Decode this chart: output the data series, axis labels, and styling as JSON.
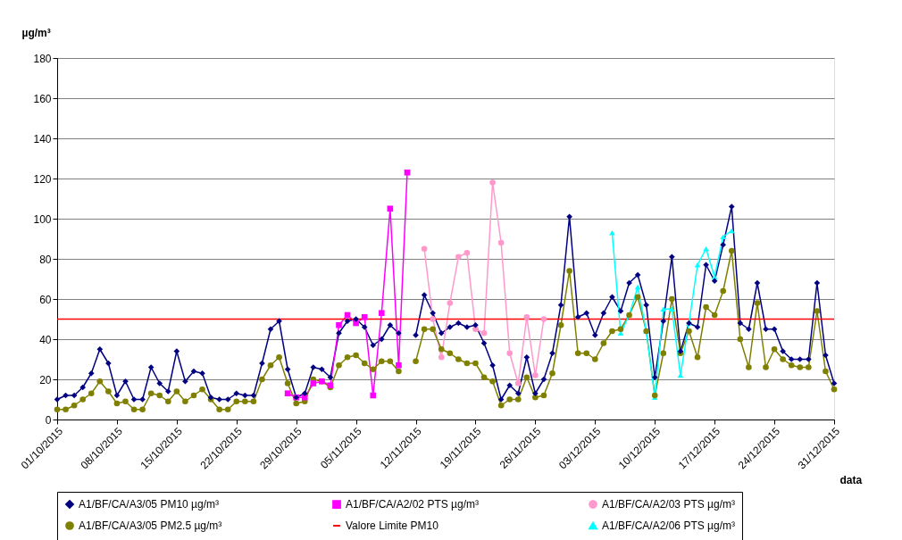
{
  "chart_data": {
    "type": "line",
    "xlabel": "data",
    "ylabel": "µg/m³",
    "x": [
      "2015-10-01",
      "2015-10-02",
      "2015-10-03",
      "2015-10-04",
      "2015-10-05",
      "2015-10-06",
      "2015-10-07",
      "2015-10-08",
      "2015-10-09",
      "2015-10-10",
      "2015-10-11",
      "2015-10-12",
      "2015-10-13",
      "2015-10-14",
      "2015-10-15",
      "2015-10-16",
      "2015-10-17",
      "2015-10-18",
      "2015-10-19",
      "2015-10-20",
      "2015-10-21",
      "2015-10-22",
      "2015-10-23",
      "2015-10-24",
      "2015-10-25",
      "2015-10-26",
      "2015-10-27",
      "2015-10-28",
      "2015-10-29",
      "2015-10-30",
      "2015-10-31",
      "2015-11-01",
      "2015-11-02",
      "2015-11-03",
      "2015-11-04",
      "2015-11-05",
      "2015-11-06",
      "2015-11-07",
      "2015-11-08",
      "2015-11-09",
      "2015-11-10",
      "2015-11-11",
      "2015-11-12",
      "2015-11-13",
      "2015-11-14",
      "2015-11-15",
      "2015-11-16",
      "2015-11-17",
      "2015-11-18",
      "2015-11-19",
      "2015-11-20",
      "2015-11-21",
      "2015-11-22",
      "2015-11-23",
      "2015-11-24",
      "2015-11-25",
      "2015-11-26",
      "2015-11-27",
      "2015-11-28",
      "2015-11-29",
      "2015-11-30",
      "2015-12-01",
      "2015-12-02",
      "2015-12-03",
      "2015-12-04",
      "2015-12-05",
      "2015-12-06",
      "2015-12-07",
      "2015-12-08",
      "2015-12-09",
      "2015-12-10",
      "2015-12-11",
      "2015-12-12",
      "2015-12-13",
      "2015-12-14",
      "2015-12-15",
      "2015-12-16",
      "2015-12-17",
      "2015-12-18",
      "2015-12-19",
      "2015-12-20",
      "2015-12-21",
      "2015-12-22",
      "2015-12-23",
      "2015-12-24",
      "2015-12-25",
      "2015-12-26",
      "2015-12-27",
      "2015-12-28",
      "2015-12-29",
      "2015-12-30",
      "2015-12-31"
    ],
    "series": [
      {
        "name": "A1/BF/CA/A3/05 PM10 µg/m³",
        "color": "#000080",
        "marker": "diamond",
        "values": [
          10,
          12,
          12,
          16,
          23,
          35,
          28,
          12,
          19,
          10,
          10,
          26,
          18,
          14,
          34,
          19,
          24,
          23,
          11,
          10,
          10,
          13,
          12,
          12,
          28,
          45,
          49,
          25,
          11,
          13,
          26,
          25,
          21,
          43,
          49,
          50,
          46,
          37,
          40,
          47,
          43,
          null,
          42,
          62,
          53,
          43,
          46,
          48,
          46,
          47,
          38,
          27,
          10,
          17,
          13,
          31,
          13,
          20,
          33,
          57,
          101,
          51,
          53,
          42,
          53,
          61,
          54,
          68,
          72,
          57,
          21,
          49,
          81,
          34,
          48,
          46,
          77,
          69,
          87,
          106,
          48,
          45,
          68,
          45,
          45,
          34,
          30,
          30,
          30,
          68,
          32,
          18
        ]
      },
      {
        "name": "A1/BF/CA/A2/02 PTS µg/m³",
        "color": "#ff00ff",
        "marker": "square",
        "values": [
          null,
          null,
          null,
          null,
          null,
          null,
          null,
          null,
          null,
          null,
          null,
          null,
          null,
          null,
          null,
          null,
          null,
          null,
          null,
          null,
          null,
          null,
          null,
          null,
          null,
          null,
          null,
          13,
          11,
          11,
          18,
          19,
          17,
          47,
          52,
          48,
          51,
          12,
          53,
          105,
          27,
          123,
          null,
          null,
          null,
          null,
          null,
          null,
          null,
          null,
          null,
          null,
          null,
          null,
          null,
          null,
          null,
          null,
          null,
          null,
          null,
          null,
          null,
          null,
          null,
          null,
          null,
          null,
          null,
          null,
          null,
          null,
          null,
          null,
          null,
          null,
          null,
          null,
          null,
          null,
          null,
          null,
          null,
          null,
          null,
          null,
          null,
          null,
          null,
          null,
          null,
          null
        ]
      },
      {
        "name": "A1/BF/CA/A2/03 PTS µg/m³",
        "color": "#ff99cc",
        "marker": "circle",
        "values": [
          null,
          null,
          null,
          null,
          null,
          null,
          null,
          null,
          null,
          null,
          null,
          null,
          null,
          null,
          null,
          null,
          null,
          null,
          null,
          null,
          null,
          null,
          null,
          null,
          null,
          null,
          null,
          null,
          null,
          null,
          null,
          null,
          null,
          null,
          null,
          null,
          null,
          null,
          null,
          null,
          null,
          null,
          null,
          85,
          50,
          31,
          58,
          81,
          83,
          45,
          43,
          118,
          88,
          33,
          18,
          51,
          22,
          50,
          null,
          null,
          null,
          null,
          null,
          null,
          null,
          null,
          null,
          null,
          null,
          null,
          null,
          null,
          null,
          null,
          null,
          null,
          null,
          null,
          null,
          null,
          null,
          null,
          null,
          null,
          null,
          null,
          null,
          null,
          null,
          null,
          null,
          null
        ]
      },
      {
        "name": "A1/BF/CA/A3/05 PM2.5 µg/m³",
        "color": "#808000",
        "marker": "circle",
        "values": [
          5,
          5,
          7,
          10,
          13,
          19,
          14,
          8,
          9,
          5,
          5,
          13,
          12,
          9,
          14,
          9,
          12,
          15,
          10,
          5,
          5,
          9,
          9,
          9,
          20,
          27,
          31,
          18,
          8,
          9,
          20,
          19,
          16,
          27,
          31,
          32,
          28,
          25,
          29,
          29,
          24,
          null,
          29,
          45,
          45,
          35,
          33,
          30,
          28,
          28,
          21,
          19,
          7,
          10,
          10,
          21,
          11,
          12,
          23,
          47,
          74,
          33,
          33,
          30,
          38,
          44,
          45,
          52,
          61,
          44,
          12,
          33,
          60,
          33,
          44,
          31,
          56,
          52,
          64,
          84,
          40,
          26,
          58,
          26,
          35,
          30,
          27,
          26,
          26,
          54,
          24,
          15
        ]
      },
      {
        "name": "Valore Limite PM10",
        "color": "#ff0000",
        "marker": "none",
        "values": [
          50,
          50,
          50,
          50,
          50,
          50,
          50,
          50,
          50,
          50,
          50,
          50,
          50,
          50,
          50,
          50,
          50,
          50,
          50,
          50,
          50,
          50,
          50,
          50,
          50,
          50,
          50,
          50,
          50,
          50,
          50,
          50,
          50,
          50,
          50,
          50,
          50,
          50,
          50,
          50,
          50,
          50,
          50,
          50,
          50,
          50,
          50,
          50,
          50,
          50,
          50,
          50,
          50,
          50,
          50,
          50,
          50,
          50,
          50,
          50,
          50,
          50,
          50,
          50,
          50,
          50,
          50,
          50,
          50,
          50,
          50,
          50,
          50,
          50,
          50,
          50,
          50,
          50,
          50,
          50,
          50,
          50,
          50,
          50,
          50,
          50,
          50,
          50,
          50,
          50,
          50,
          50
        ]
      },
      {
        "name": "A1/BF/CA/A2/06 PTS µg/m³",
        "color": "#00ffff",
        "marker": "triangle",
        "values": [
          null,
          null,
          null,
          null,
          null,
          null,
          null,
          null,
          null,
          null,
          null,
          null,
          null,
          null,
          null,
          null,
          null,
          null,
          null,
          null,
          null,
          null,
          null,
          null,
          null,
          null,
          null,
          null,
          null,
          null,
          null,
          null,
          null,
          null,
          null,
          null,
          null,
          null,
          null,
          null,
          null,
          null,
          null,
          null,
          null,
          null,
          null,
          null,
          null,
          null,
          null,
          null,
          null,
          null,
          null,
          null,
          null,
          null,
          null,
          null,
          null,
          null,
          null,
          null,
          null,
          93,
          43,
          52,
          66,
          44,
          11,
          55,
          55,
          22,
          48,
          77,
          85,
          71,
          91,
          94,
          null,
          null,
          null,
          null,
          null,
          null,
          null,
          null,
          null,
          null,
          null,
          null
        ]
      }
    ],
    "xlim": [
      "2015-10-01",
      "2015-12-31"
    ],
    "xticks": [
      {
        "value": "2015-10-01",
        "label": "01/10/2015"
      },
      {
        "value": "2015-10-08",
        "label": "08/10/2015"
      },
      {
        "value": "2015-10-15",
        "label": "15/10/2015"
      },
      {
        "value": "2015-10-22",
        "label": "22/10/2015"
      },
      {
        "value": "2015-10-29",
        "label": "29/10/2015"
      },
      {
        "value": "2015-11-05",
        "label": "05/11/2015"
      },
      {
        "value": "2015-11-12",
        "label": "12/11/2015"
      },
      {
        "value": "2015-11-19",
        "label": "19/11/2015"
      },
      {
        "value": "2015-11-26",
        "label": "26/11/2015"
      },
      {
        "value": "2015-12-03",
        "label": "03/12/2015"
      },
      {
        "value": "2015-12-10",
        "label": "10/12/2015"
      },
      {
        "value": "2015-12-17",
        "label": "17/12/2015"
      },
      {
        "value": "2015-12-24",
        "label": "24/12/2015"
      },
      {
        "value": "2015-12-31",
        "label": "31/12/2015"
      }
    ],
    "ylim": [
      0,
      180
    ],
    "yticks": [
      0,
      20,
      40,
      60,
      80,
      100,
      120,
      140,
      160,
      180
    ],
    "grid": "y",
    "legend": "bottom",
    "line_style": "solid"
  }
}
